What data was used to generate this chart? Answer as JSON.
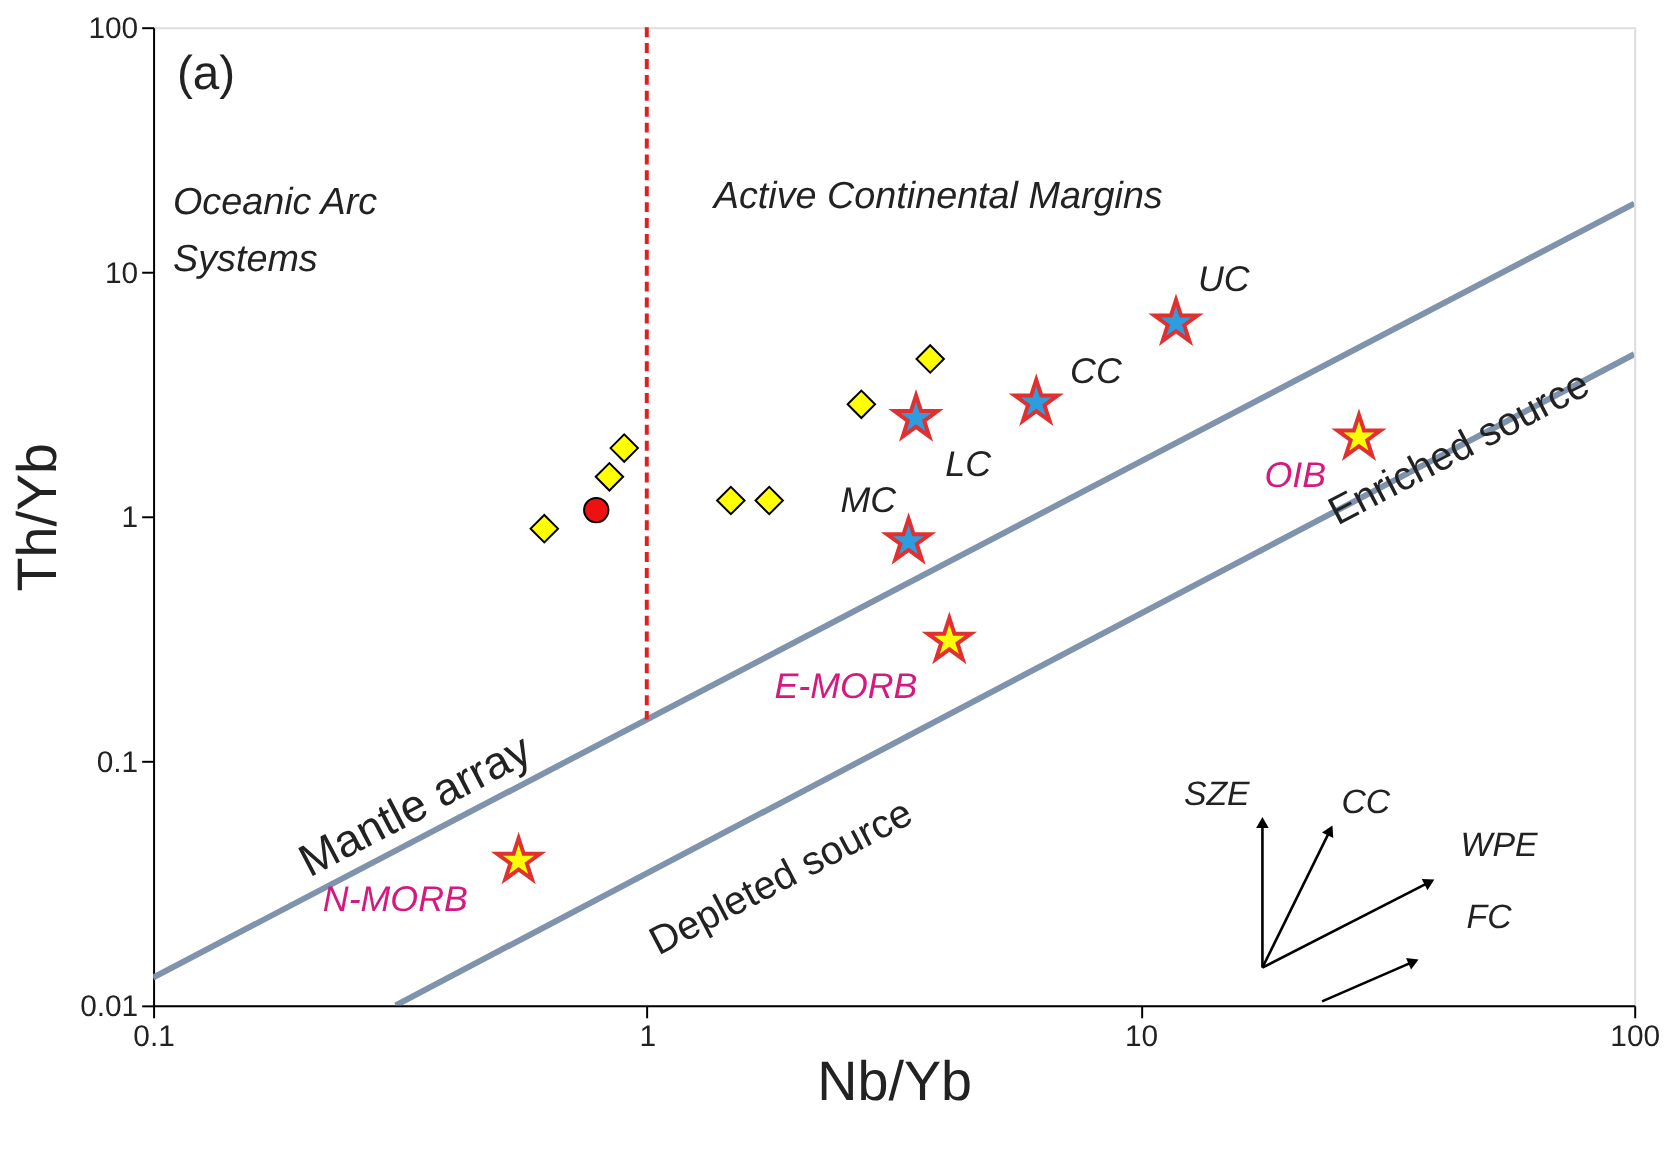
{
  "chart_data": {
    "type": "scatter",
    "xlabel": "Nb/Yb",
    "ylabel": "Th/Yb",
    "log": "xy",
    "grid": false,
    "xlim": [
      0.1,
      100
    ],
    "ylim": [
      0.01,
      100
    ],
    "xticks": [
      0.1,
      1,
      10,
      100
    ],
    "yticks": [
      0.01,
      0.1,
      1,
      10,
      100
    ],
    "series": [
      {
        "type": "line",
        "color": "#7f93ad",
        "marker": "none",
        "line_style": "solid",
        "x": [
          0.1,
          100
        ],
        "values": [
          0.013,
          19
        ]
      },
      {
        "type": "line",
        "color": "#7f93ad",
        "marker": "none",
        "line_style": "solid",
        "x": [
          0.31,
          100
        ],
        "values": [
          0.01,
          4.6
        ]
      },
      {
        "color": "#ffff00",
        "marker": "diamond",
        "x": [
          0.62,
          0.84,
          0.9,
          1.48,
          1.77,
          2.72,
          3.75
        ],
        "values": [
          0.89,
          1.45,
          1.9,
          1.16,
          1.16,
          2.87,
          4.4
        ]
      },
      {
        "color": "#ee1111",
        "marker": "circle",
        "x": [
          0.79
        ],
        "values": [
          1.06
        ]
      },
      {
        "color": "#2e9de0",
        "marker": "star",
        "x": [
          3.51,
          3.39,
          6.15,
          11.8
        ],
        "values": [
          2.52,
          0.79,
          2.92,
          6.2
        ],
        "value_labels": [
          "MC",
          "LC",
          "CC",
          "UC"
        ]
      },
      {
        "color": "#ffff00",
        "marker": "star",
        "x": [
          4.1,
          0.55,
          27.7
        ],
        "values": [
          0.31,
          0.039,
          2.1
        ],
        "value_labels": [
          "E-MORB",
          "N-MORB",
          "OIB"
        ]
      }
    ],
    "ref_lines": [
      {
        "axis": "x",
        "value": 1,
        "color": "#e02020",
        "line_style": "dashed"
      }
    ],
    "annotations": [
      "(a)",
      "Oceanic Arc\nSystems",
      "Active Continental Margins",
      "Mantle array",
      "Depleted source",
      "Enriched source",
      "SZE",
      "CC",
      "WPE",
      "FC"
    ]
  }
}
